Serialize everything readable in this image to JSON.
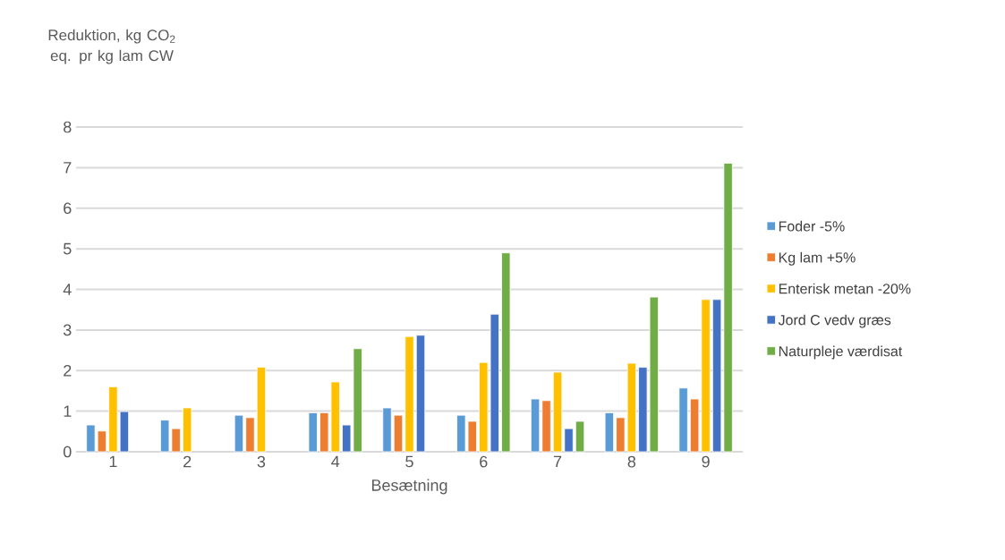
{
  "chart_data": {
    "type": "bar",
    "ylabel": "Reduktion, kg CO$_{2}$ eq. pr kg lam CW",
    "xlabel": "Besætning",
    "categories": [
      "1",
      "2",
      "3",
      "4",
      "5",
      "6",
      "7",
      "8",
      "9"
    ],
    "series": [
      {
        "name": "Foder -5%",
        "color": "#5b9bd5",
        "values": [
          0.66,
          0.78,
          0.9,
          0.96,
          1.08,
          0.9,
          1.3,
          0.96,
          1.57
        ]
      },
      {
        "name": "Kg lam +5%",
        "color": "#ed7d31",
        "values": [
          0.51,
          0.57,
          0.84,
          0.96,
          0.9,
          0.75,
          1.26,
          0.84,
          1.3
        ]
      },
      {
        "name": "Enterisk metan -20%",
        "color": "#ffc000",
        "values": [
          1.6,
          1.08,
          2.08,
          1.72,
          2.84,
          2.2,
          1.96,
          2.18,
          3.75
        ]
      },
      {
        "name": "Jord C vedv græs",
        "color": "#4472c4",
        "values": [
          0.99,
          null,
          null,
          0.66,
          2.87,
          3.39,
          0.57,
          2.08,
          3.75
        ]
      },
      {
        "name": "Naturpleje værdisat",
        "color": "#70ad47",
        "values": [
          null,
          null,
          null,
          2.54,
          null,
          4.9,
          0.75,
          3.81,
          7.11
        ]
      }
    ],
    "ylim": [
      0,
      8
    ],
    "yticks": [
      0,
      1,
      2,
      3,
      4,
      5,
      6,
      7,
      8
    ],
    "grid": "y",
    "legend": "right"
  }
}
